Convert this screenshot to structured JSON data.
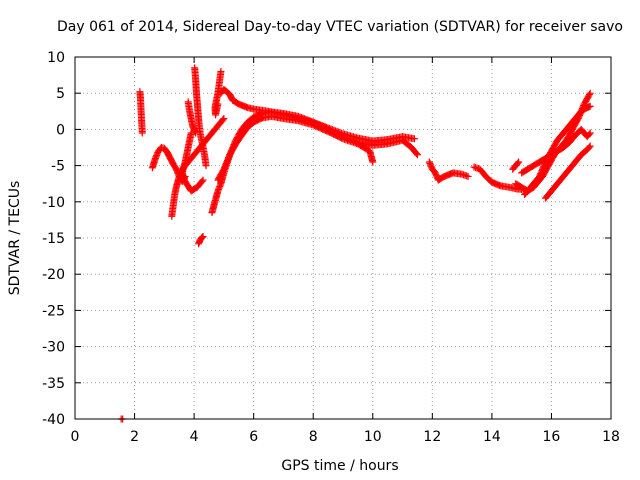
{
  "chart_data": {
    "type": "scatter",
    "title": "Day 061 of 2014, Sidereal Day-to-day VTEC variation (SDTVAR) for receiver savo",
    "xlabel": "GPS time / hours",
    "ylabel": "SDTVAR / TECUs",
    "xlim": [
      0,
      18
    ],
    "ylim": [
      -40,
      10
    ],
    "xticks": [
      0,
      2,
      4,
      6,
      8,
      10,
      12,
      14,
      16,
      18
    ],
    "yticks": [
      10,
      5,
      0,
      -5,
      -10,
      -15,
      -20,
      -25,
      -30,
      -35,
      -40
    ],
    "grid": true,
    "marker": "+",
    "series_color": "#ff0000",
    "tracks": [
      {
        "name": "spike-2.2",
        "points": [
          [
            2.18,
            5.2
          ],
          [
            2.2,
            4.2
          ],
          [
            2.22,
            2.5
          ],
          [
            2.24,
            1.0
          ],
          [
            2.26,
            -0.5
          ]
        ]
      },
      {
        "name": "arc-2.6",
        "points": [
          [
            2.6,
            -5.3
          ],
          [
            2.7,
            -4.0
          ],
          [
            2.8,
            -3.0
          ],
          [
            2.9,
            -2.5
          ],
          [
            3.0,
            -2.6
          ],
          [
            3.1,
            -3.2
          ],
          [
            3.2,
            -4.0
          ],
          [
            3.3,
            -4.8
          ],
          [
            3.4,
            -5.5
          ],
          [
            3.5,
            -6.5
          ],
          [
            3.6,
            -7.2
          ],
          [
            3.7,
            -6.5
          ]
        ]
      },
      {
        "name": "rise-3.3",
        "points": [
          [
            3.25,
            -12.0
          ],
          [
            3.3,
            -10.5
          ],
          [
            3.35,
            -9.0
          ],
          [
            3.4,
            -8.0
          ],
          [
            3.5,
            -6.5
          ],
          [
            3.6,
            -5.5
          ],
          [
            3.8,
            -4.5
          ],
          [
            4.0,
            -3.5
          ],
          [
            4.2,
            -2.5
          ],
          [
            4.4,
            -1.5
          ],
          [
            4.6,
            -0.5
          ],
          [
            4.8,
            0.5
          ],
          [
            5.0,
            1.5
          ]
        ]
      },
      {
        "name": "spike-3.8",
        "points": [
          [
            3.8,
            3.8
          ],
          [
            3.85,
            2.5
          ],
          [
            3.9,
            1.5
          ],
          [
            3.95,
            0.5
          ],
          [
            4.0,
            0.0
          ],
          [
            4.05,
            -0.5
          ]
        ]
      },
      {
        "name": "spike-4.05",
        "points": [
          [
            4.02,
            8.5
          ],
          [
            4.05,
            7.0
          ],
          [
            4.08,
            5.0
          ],
          [
            4.12,
            3.0
          ],
          [
            4.16,
            1.0
          ],
          [
            4.2,
            -0.5
          ],
          [
            4.28,
            -2.0
          ],
          [
            4.35,
            -3.5
          ],
          [
            4.4,
            -5.0
          ]
        ]
      },
      {
        "name": "fall-3.9",
        "points": [
          [
            3.9,
            -0.5
          ],
          [
            3.8,
            -2.5
          ],
          [
            3.7,
            -4.5
          ],
          [
            3.6,
            -6.0
          ],
          [
            3.7,
            -7.2
          ],
          [
            3.9,
            -8.5
          ],
          [
            4.1,
            -8.0
          ],
          [
            4.3,
            -7.0
          ]
        ]
      },
      {
        "name": "blob-4.2",
        "points": [
          [
            4.15,
            -15.8
          ],
          [
            4.2,
            -15.3
          ],
          [
            4.25,
            -15.0
          ],
          [
            4.3,
            -14.8
          ]
        ]
      },
      {
        "name": "arc-4.6",
        "points": [
          [
            4.6,
            -11.5
          ],
          [
            4.7,
            -10.0
          ],
          [
            4.8,
            -8.5
          ],
          [
            4.9,
            -7.5
          ],
          [
            5.0,
            -6.0
          ],
          [
            5.2,
            -3.5
          ],
          [
            5.4,
            -1.5
          ],
          [
            5.6,
            0.0
          ],
          [
            5.8,
            1.0
          ],
          [
            6.0,
            1.7
          ],
          [
            6.3,
            2.2
          ],
          [
            6.6,
            2.4
          ],
          [
            7.0,
            2.2
          ],
          [
            7.5,
            1.8
          ],
          [
            8.0,
            1.0
          ],
          [
            8.5,
            0.0
          ],
          [
            9.0,
            -1.0
          ],
          [
            9.5,
            -1.8
          ],
          [
            10.0,
            -2.2
          ],
          [
            10.5,
            -2.0
          ],
          [
            11.0,
            -1.5
          ],
          [
            11.3,
            -2.5
          ],
          [
            11.5,
            -3.5
          ]
        ]
      },
      {
        "name": "spike-4.8",
        "points": [
          [
            4.9,
            8.0
          ],
          [
            4.85,
            6.5
          ],
          [
            4.8,
            5.0
          ],
          [
            4.75,
            4.0
          ],
          [
            4.7,
            3.0
          ],
          [
            4.72,
            2.0
          ],
          [
            4.8,
            3.5
          ]
        ]
      },
      {
        "name": "top-5",
        "points": [
          [
            4.9,
            5.0
          ],
          [
            5.0,
            5.5
          ],
          [
            5.1,
            5.2
          ],
          [
            5.2,
            4.8
          ],
          [
            5.3,
            4.0
          ],
          [
            5.5,
            3.5
          ],
          [
            5.8,
            3.0
          ],
          [
            6.0,
            2.8
          ],
          [
            6.5,
            2.5
          ],
          [
            7.0,
            2.0
          ],
          [
            7.5,
            1.5
          ],
          [
            8.0,
            1.0
          ],
          [
            8.5,
            0.2
          ],
          [
            9.0,
            -0.6
          ],
          [
            9.5,
            -1.2
          ],
          [
            10.0,
            -1.6
          ],
          [
            10.5,
            -1.4
          ],
          [
            11.0,
            -1.0
          ],
          [
            11.4,
            -1.3
          ]
        ]
      },
      {
        "name": "lower-5",
        "points": [
          [
            4.8,
            -7.0
          ],
          [
            5.0,
            -5.5
          ],
          [
            5.2,
            -3.5
          ],
          [
            5.4,
            -2.0
          ],
          [
            5.6,
            -0.8
          ],
          [
            5.8,
            0.3
          ],
          [
            6.0,
            1.0
          ],
          [
            6.3,
            1.6
          ],
          [
            6.6,
            1.8
          ],
          [
            7.0,
            1.5
          ],
          [
            7.5,
            1.2
          ],
          [
            8.0,
            0.6
          ],
          [
            8.5,
            -0.3
          ],
          [
            9.0,
            -1.3
          ],
          [
            9.5,
            -2.0
          ],
          [
            9.9,
            -3.0
          ],
          [
            10.0,
            -4.5
          ]
        ]
      },
      {
        "name": "seg-12",
        "points": [
          [
            11.9,
            -4.5
          ],
          [
            12.0,
            -5.5
          ],
          [
            12.1,
            -6.0
          ],
          [
            12.2,
            -7.0
          ],
          [
            12.4,
            -6.5
          ],
          [
            12.7,
            -6.0
          ],
          [
            13.0,
            -6.2
          ],
          [
            13.2,
            -6.5
          ]
        ]
      },
      {
        "name": "seg-13.5",
        "points": [
          [
            13.4,
            -5.2
          ],
          [
            13.6,
            -5.5
          ],
          [
            13.8,
            -6.5
          ],
          [
            14.0,
            -7.3
          ],
          [
            14.3,
            -7.8
          ],
          [
            14.6,
            -8.0
          ],
          [
            14.8,
            -8.2
          ],
          [
            15.0,
            -8.3
          ]
        ]
      },
      {
        "name": "arc-15",
        "points": [
          [
            14.8,
            -7.5
          ],
          [
            15.0,
            -8.0
          ],
          [
            15.2,
            -8.5
          ],
          [
            15.4,
            -8.0
          ],
          [
            15.5,
            -7.5
          ],
          [
            15.7,
            -6.5
          ],
          [
            15.9,
            -5.0
          ],
          [
            16.1,
            -3.5
          ],
          [
            16.3,
            -2.5
          ],
          [
            16.5,
            -1.5
          ],
          [
            16.7,
            0.0
          ],
          [
            16.9,
            1.5
          ],
          [
            17.1,
            3.5
          ],
          [
            17.3,
            5.0
          ]
        ]
      },
      {
        "name": "mid-15.5",
        "points": [
          [
            15.1,
            -9.0
          ],
          [
            15.3,
            -8.0
          ],
          [
            15.6,
            -6.5
          ],
          [
            15.8,
            -4.5
          ],
          [
            16.0,
            -3.0
          ],
          [
            16.2,
            -1.5
          ],
          [
            16.4,
            -0.5
          ],
          [
            16.6,
            0.5
          ],
          [
            16.8,
            1.5
          ],
          [
            17.0,
            2.5
          ],
          [
            17.2,
            3.0
          ],
          [
            17.3,
            3.2
          ]
        ]
      },
      {
        "name": "low-15.8",
        "points": [
          [
            15.8,
            -9.5
          ],
          [
            16.0,
            -8.5
          ],
          [
            16.2,
            -7.5
          ],
          [
            16.4,
            -6.5
          ],
          [
            16.6,
            -5.5
          ],
          [
            16.8,
            -4.5
          ],
          [
            17.0,
            -3.5
          ],
          [
            17.2,
            -2.8
          ],
          [
            17.3,
            -2.3
          ]
        ]
      },
      {
        "name": "seg-15-low",
        "points": [
          [
            15.0,
            -6.0
          ],
          [
            15.2,
            -5.5
          ],
          [
            15.4,
            -5.0
          ],
          [
            15.6,
            -4.5
          ],
          [
            15.8,
            -4.0
          ],
          [
            16.0,
            -3.5
          ],
          [
            16.2,
            -3.0
          ],
          [
            16.4,
            -2.5
          ],
          [
            16.6,
            -1.8
          ],
          [
            16.8,
            -0.8
          ],
          [
            17.0,
            0.0
          ],
          [
            17.2,
            -1.0
          ],
          [
            17.3,
            -0.5
          ]
        ]
      },
      {
        "name": "seg-14.8",
        "points": [
          [
            14.7,
            -5.5
          ],
          [
            14.8,
            -5.0
          ],
          [
            14.9,
            -4.5
          ]
        ]
      },
      {
        "name": "outlier",
        "points": [
          [
            1.55,
            -40.0
          ],
          [
            1.6,
            -40.0
          ]
        ]
      }
    ]
  }
}
